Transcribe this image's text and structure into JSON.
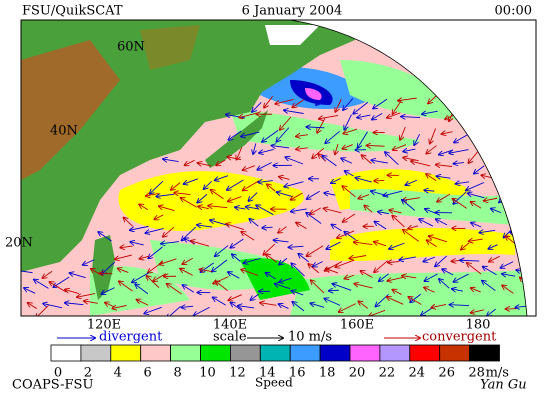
{
  "header": {
    "title": "FSU/QuikSCAT",
    "date": "6 January 2004",
    "time": "00:00"
  },
  "map": {
    "lat_labels": [
      "60N",
      "40N",
      "20N"
    ],
    "lon_labels": [
      "120E",
      "140E",
      "160E",
      "180"
    ]
  },
  "legend": {
    "divergent": "divergent",
    "scale": "scale",
    "scale_value": "10 m/s",
    "convergent": "convergent"
  },
  "colorbar": {
    "ticks": [
      0,
      2,
      4,
      6,
      8,
      10,
      12,
      14,
      16,
      18,
      20,
      22,
      24,
      26,
      28
    ],
    "colors": [
      "#ffffff",
      "#c8c8c8",
      "#ffff00",
      "#ffc8c8",
      "#96ff96",
      "#00e600",
      "#969696",
      "#00b4b4",
      "#3c9cff",
      "#0000c8",
      "#ff64ff",
      "#b496ff",
      "#ff0000",
      "#c83200",
      "#000000"
    ],
    "unit": "m/s"
  },
  "footer": {
    "source": "COAPS-FSU",
    "variable": "Speed",
    "author": "Yan Gu"
  }
}
